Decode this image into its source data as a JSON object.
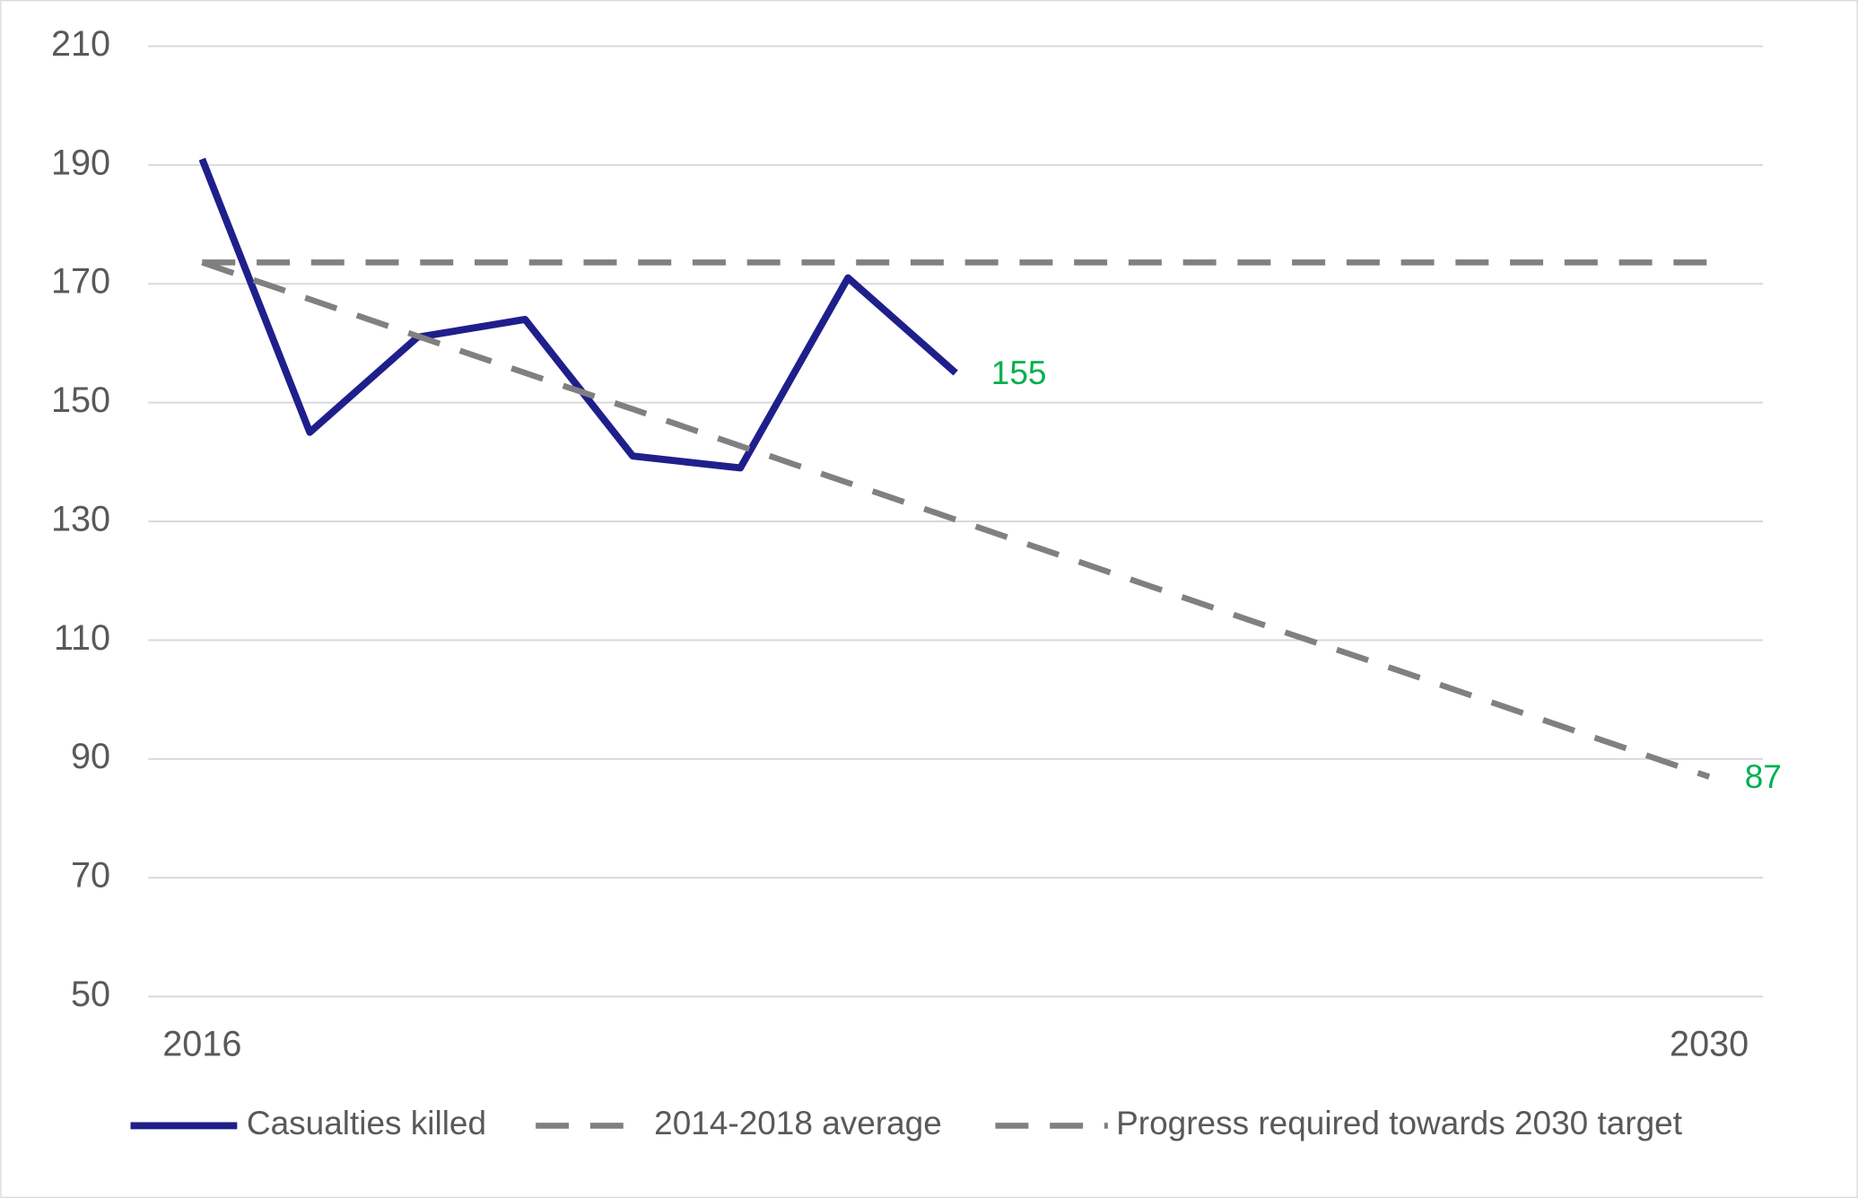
{
  "chart_data": {
    "type": "line",
    "categories": [
      "2016",
      null,
      null,
      null,
      null,
      null,
      null,
      null,
      null,
      null,
      null,
      null,
      null,
      null,
      "2030"
    ],
    "series": [
      {
        "name": "Casualties killed",
        "color": "#1f1f8c",
        "dash": false,
        "values": [
          191,
          145,
          161,
          164,
          141,
          139,
          171,
          155,
          null,
          null,
          null,
          null,
          null,
          null,
          null
        ],
        "value_labels": [
          null,
          null,
          null,
          null,
          null,
          null,
          null,
          "155",
          null,
          null,
          null,
          null,
          null,
          null,
          null
        ]
      },
      {
        "name": "2014-2018 average",
        "color": "#808080",
        "dash": true,
        "values": [
          173.6,
          173.6,
          173.6,
          173.6,
          173.6,
          173.6,
          173.6,
          173.6,
          173.6,
          173.6,
          173.6,
          173.6,
          173.6,
          173.6,
          173.6
        ]
      },
      {
        "name": "Progress required towards 2030 target",
        "color": "#808080",
        "dash": true,
        "values": [
          173.6,
          167.4,
          161.2,
          155.0,
          148.9,
          142.7,
          136.5,
          130.3,
          124.1,
          117.9,
          111.7,
          105.6,
          99.4,
          93.2,
          87
        ],
        "value_labels": [
          null,
          null,
          null,
          null,
          null,
          null,
          null,
          null,
          null,
          null,
          null,
          null,
          null,
          null,
          "87"
        ]
      }
    ],
    "label_color": "#00b050",
    "ylim": [
      50,
      210
    ],
    "yticks": [
      50,
      70,
      90,
      110,
      130,
      150,
      170,
      190,
      210
    ],
    "grid": true,
    "legend": "bottom"
  }
}
